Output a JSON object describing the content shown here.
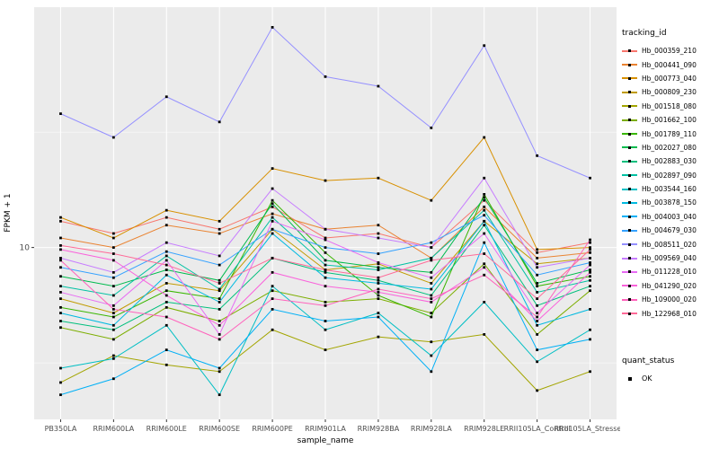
{
  "chart_data": {
    "type": "line",
    "title": "",
    "xlabel": "sample_name",
    "ylabel": "FPKM + 1",
    "yscale": "log10",
    "ylim": [
      1.8,
      110
    ],
    "yticks": [
      10
    ],
    "ytick_labels": [
      "10"
    ],
    "minor_gridlines": [
      3.162,
      31.62
    ],
    "panel_bg": "#EBEBEB",
    "grid_color": "#FFFFFF",
    "point_color": "#000000",
    "legend_position": "right",
    "categories": [
      "PB350LA",
      "RRIM600LA",
      "RRIM600LE",
      "RRIM600SE",
      "RRIM600PE",
      "RRIM901LA",
      "RRIM928BA",
      "RRIM928LA",
      "RRIM928LE",
      "RRII105LA_Control",
      "RRII105LA_Stressed"
    ],
    "series": [
      {
        "name": "Hb_000359_210",
        "color": "#F8766D",
        "values": [
          13,
          11.5,
          13.5,
          12,
          15,
          11,
          11.5,
          10,
          16,
          9.5,
          10.5
        ]
      },
      {
        "name": "Hb_000441_090",
        "color": "#EA8331",
        "values": [
          11,
          10,
          12.5,
          11.5,
          14,
          12,
          12.5,
          9,
          15,
          9,
          9.5
        ]
      },
      {
        "name": "Hb_000773_040",
        "color": "#D89000",
        "values": [
          13.5,
          11,
          14.5,
          13,
          22,
          19.5,
          20,
          16,
          30,
          9.8,
          10
        ]
      },
      {
        "name": "Hb_000809_230",
        "color": "#C09B00",
        "values": [
          6,
          5.2,
          7,
          6.5,
          12,
          8,
          8.5,
          7,
          13,
          8.5,
          9
        ]
      },
      {
        "name": "Hb_001518_080",
        "color": "#A3A500",
        "values": [
          2.6,
          3.4,
          3.1,
          2.9,
          4.4,
          3.6,
          4.1,
          3.9,
          4.2,
          2.4,
          2.9
        ]
      },
      {
        "name": "Hb_001662_100",
        "color": "#7CAE00",
        "values": [
          4.5,
          4,
          5.5,
          4.8,
          6.5,
          5.8,
          6,
          5.2,
          8.5,
          4.2,
          6.5
        ]
      },
      {
        "name": "Hb_001789_110",
        "color": "#39B600",
        "values": [
          5.5,
          5,
          6.5,
          6,
          16,
          9.5,
          6.2,
          5,
          17,
          6.8,
          7.5
        ]
      },
      {
        "name": "Hb_002027_080",
        "color": "#00BB4E",
        "values": [
          7.5,
          6.8,
          8,
          7.2,
          15.5,
          8.8,
          8.2,
          7.8,
          16.5,
          7,
          8
        ]
      },
      {
        "name": "Hb_002883_030",
        "color": "#00BF7D",
        "values": [
          4.8,
          4.4,
          5.8,
          5.4,
          9,
          7.8,
          7.2,
          6.2,
          12.5,
          5.6,
          6.8
        ]
      },
      {
        "name": "Hb_002897_090",
        "color": "#00C1A3",
        "values": [
          6.8,
          6.2,
          9.2,
          6.6,
          13.5,
          8.4,
          8,
          9,
          14.5,
          6.4,
          7.2
        ]
      },
      {
        "name": "Hb_003544_160",
        "color": "#00BFC4",
        "values": [
          3,
          3.3,
          4.6,
          2.3,
          6.8,
          4.4,
          5.2,
          3.4,
          5.8,
          3.2,
          4.4
        ]
      },
      {
        "name": "Hb_003878_150",
        "color": "#00BAE0",
        "values": [
          5.2,
          4.6,
          7.6,
          5.8,
          11.5,
          7.4,
          7,
          6.6,
          13,
          4.6,
          5.4
        ]
      },
      {
        "name": "Hb_004003_040",
        "color": "#00B0F6",
        "values": [
          2.3,
          2.7,
          3.6,
          3,
          5.4,
          4.8,
          5,
          2.9,
          10.5,
          3.6,
          4
        ]
      },
      {
        "name": "Hb_004679_030",
        "color": "#35A2FF",
        "values": [
          8.2,
          7.4,
          9.6,
          8.4,
          12,
          10,
          9.4,
          10.5,
          13.8,
          7.6,
          8.6
        ]
      },
      {
        "name": "Hb_008511_020",
        "color": "#9590FF",
        "values": [
          38,
          30,
          45,
          35,
          90,
          55,
          50,
          33,
          75,
          25,
          20
        ]
      },
      {
        "name": "Hb_009569_040",
        "color": "#C77CFF",
        "values": [
          9,
          7.8,
          10.5,
          9.2,
          18,
          12,
          11,
          10,
          20,
          8.2,
          9
        ]
      },
      {
        "name": "Hb_011228_010",
        "color": "#E76BF3",
        "values": [
          6.4,
          5.6,
          8.8,
          4.2,
          13,
          10.8,
          8.6,
          7.4,
          11.5,
          5.2,
          8.4
        ]
      },
      {
        "name": "Hb_041290_020",
        "color": "#FA62DB",
        "values": [
          9.8,
          8.8,
          6.2,
          4.6,
          7.8,
          6.8,
          6.4,
          5.8,
          8.2,
          4.8,
          7.8
        ]
      },
      {
        "name": "Hb_109000_020",
        "color": "#FF62BC",
        "values": [
          8.8,
          5.4,
          5,
          4,
          6,
          5.6,
          6.6,
          6,
          7.6,
          5,
          10.8
        ]
      },
      {
        "name": "Hb_122968_010",
        "color": "#FF6A98",
        "values": [
          10.2,
          9.4,
          8.4,
          7,
          9,
          8,
          7.4,
          8.8,
          9.4,
          6,
          9.8
        ]
      }
    ]
  },
  "legend": {
    "tracking_title": "tracking_id",
    "quant_title": "quant_status",
    "quant_items": [
      {
        "label": "OK",
        "glyph": "black-square-point"
      }
    ]
  }
}
